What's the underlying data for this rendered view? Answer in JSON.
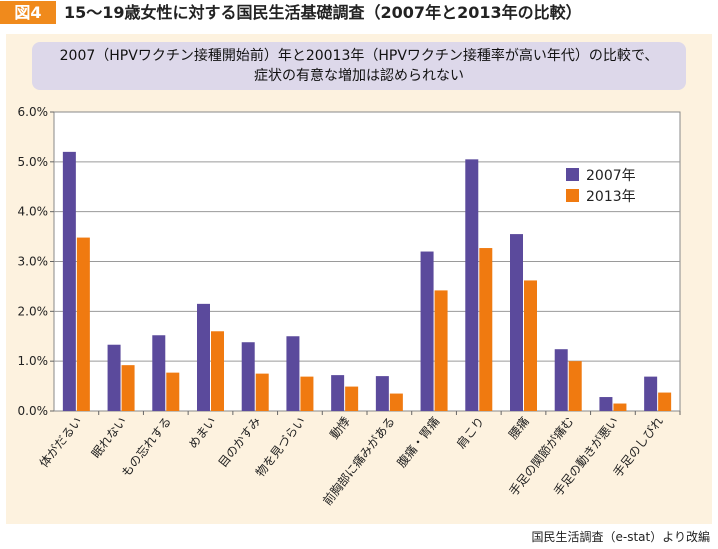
{
  "figure_number": "図4",
  "figure_title": "15～19歳女性に対する国民生活基礎調査（2007年と2013年の比較）",
  "subtitle_line1": "2007（HPVワクチン接種開始前）年と20013年（HPVワクチン接種率が高い年代）の比較で、",
  "subtitle_line2": "症状の有意な増加は認められない",
  "source": "国民生活調査（e-stat）より改編",
  "colors": {
    "series_2007": "#5b4a9c",
    "series_2013": "#f07a10",
    "panel_bg": "#fdf2df",
    "header_accent": "#f08a1c"
  },
  "chart_data": {
    "type": "bar",
    "categories": [
      "体がだるい",
      "眠れない",
      "もの忘れする",
      "めまい",
      "目のかすみ",
      "物を見づらい",
      "動悸",
      "前胸部に痛みがある",
      "腹痛・胃痛",
      "肩こり",
      "腰痛",
      "手足の関節が痛む",
      "手足の動きが悪い",
      "手足のしびれ"
    ],
    "series": [
      {
        "name": "2007年",
        "values": [
          5.2,
          1.33,
          1.52,
          2.15,
          1.38,
          1.5,
          0.72,
          0.7,
          3.2,
          5.05,
          3.55,
          1.24,
          0.28,
          0.69
        ]
      },
      {
        "name": "2013年",
        "values": [
          3.48,
          0.92,
          0.77,
          1.6,
          0.75,
          0.69,
          0.49,
          0.35,
          2.42,
          3.27,
          2.62,
          1.0,
          0.15,
          0.37
        ]
      }
    ],
    "yticks": [
      "0.0%",
      "1.0%",
      "2.0%",
      "3.0%",
      "4.0%",
      "5.0%",
      "6.0%"
    ],
    "ylim": [
      0,
      6
    ],
    "legend_position": "top-right",
    "grid": "horizontal"
  }
}
